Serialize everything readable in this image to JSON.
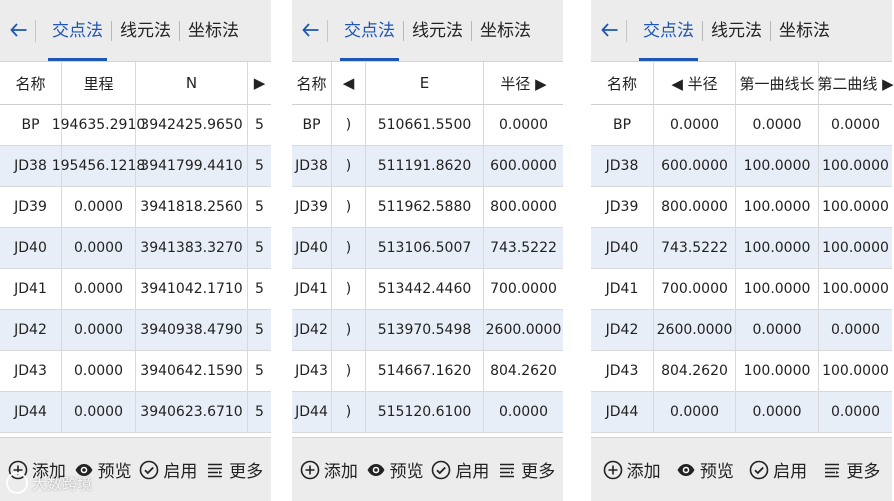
{
  "tabs": [
    "交点法",
    "线元法",
    "坐标法"
  ],
  "active_tab": "交点法",
  "accent_color": "#1e56b4",
  "row_alt_color": "#e8eef7",
  "names": [
    "BP",
    "JD38",
    "JD39",
    "JD40",
    "JD41",
    "JD42",
    "JD43",
    "JD44"
  ],
  "panel1": {
    "headers": [
      "名称",
      "里程",
      "N"
    ],
    "right_arrow": "▶",
    "rows": [
      [
        "BP",
        "194635.2910",
        "3942425.9650",
        "5"
      ],
      [
        "JD38",
        "195456.1218",
        "3941799.4410",
        "5"
      ],
      [
        "JD39",
        "0.0000",
        "3941818.2560",
        "5"
      ],
      [
        "JD40",
        "0.0000",
        "3941383.3270",
        "5"
      ],
      [
        "JD41",
        "0.0000",
        "3941042.1710",
        "5"
      ],
      [
        "JD42",
        "0.0000",
        "3940938.4790",
        "5"
      ],
      [
        "JD43",
        "0.0000",
        "3940642.1590",
        "5"
      ],
      [
        "JD44",
        "0.0000",
        "3940623.6710",
        "5"
      ]
    ]
  },
  "panel2": {
    "headers": [
      "名称",
      "E",
      "半径"
    ],
    "left_arrow": "◀",
    "right_arrow": "▶",
    "rows": [
      [
        "BP",
        ")",
        "510661.5500",
        "0.0000"
      ],
      [
        "JD38",
        ")",
        "511191.8620",
        "600.0000"
      ],
      [
        "JD39",
        ")",
        "511962.5880",
        "800.0000"
      ],
      [
        "JD40",
        ")",
        "513106.5007",
        "743.5222"
      ],
      [
        "JD41",
        ")",
        "513442.4460",
        "700.0000"
      ],
      [
        "JD42",
        ")",
        "513970.5498",
        "2600.0000"
      ],
      [
        "JD43",
        ")",
        "514667.1620",
        "804.2620"
      ],
      [
        "JD44",
        ")",
        "515120.6100",
        "0.0000"
      ]
    ]
  },
  "panel3": {
    "headers": [
      "名称",
      "半径",
      "第一曲线长",
      "第二曲线"
    ],
    "left_arrow": "◀",
    "right_arrow": "▶",
    "rows": [
      [
        "BP",
        "0.0000",
        "0.0000",
        "0.0000"
      ],
      [
        "JD38",
        "600.0000",
        "100.0000",
        "100.0000"
      ],
      [
        "JD39",
        "800.0000",
        "100.0000",
        "100.0000"
      ],
      [
        "JD40",
        "743.5222",
        "100.0000",
        "100.0000"
      ],
      [
        "JD41",
        "700.0000",
        "100.0000",
        "100.0000"
      ],
      [
        "JD42",
        "2600.0000",
        "0.0000",
        "0.0000"
      ],
      [
        "JD43",
        "804.2620",
        "100.0000",
        "100.0000"
      ],
      [
        "JD44",
        "0.0000",
        "0.0000",
        "0.0000"
      ]
    ]
  },
  "bottom_buttons": [
    {
      "label": "添加",
      "icon": "add-icon"
    },
    {
      "label": "预览",
      "icon": "eye-icon"
    },
    {
      "label": "启用",
      "icon": "check-icon"
    },
    {
      "label": "更多",
      "icon": "menu-icon"
    }
  ],
  "watermark": "大数跨境"
}
